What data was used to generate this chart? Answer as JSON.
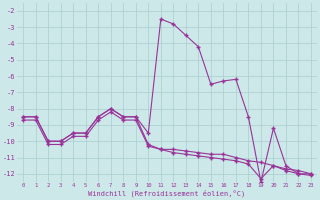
{
  "xlabel": "Windchill (Refroidissement éolien,°C)",
  "x": [
    0,
    1,
    2,
    3,
    4,
    5,
    6,
    7,
    8,
    9,
    10,
    11,
    12,
    13,
    14,
    15,
    16,
    17,
    18,
    19,
    20,
    21,
    22,
    23
  ],
  "line1": [
    -8.5,
    -8.5,
    -10.0,
    -10.0,
    -9.5,
    -9.5,
    -8.5,
    -8.0,
    -8.5,
    -8.5,
    -9.5,
    -2.5,
    -2.8,
    -3.5,
    -4.2,
    -6.5,
    -6.3,
    -6.2,
    -8.5,
    -12.5,
    -9.2,
    -11.5,
    -12.0,
    -12.0
  ],
  "line2": [
    -8.5,
    -8.5,
    -10.0,
    -10.0,
    -9.5,
    -9.5,
    -8.5,
    -8.0,
    -8.5,
    -8.5,
    -10.2,
    -10.5,
    -10.5,
    -10.6,
    -10.7,
    -10.8,
    -10.8,
    -11.0,
    -11.2,
    -11.3,
    -11.5,
    -11.7,
    -11.8,
    -12.0
  ],
  "line3": [
    -8.7,
    -8.7,
    -10.2,
    -10.2,
    -9.7,
    -9.7,
    -8.7,
    -8.2,
    -8.7,
    -8.7,
    -10.3,
    -10.5,
    -10.7,
    -10.8,
    -10.9,
    -11.0,
    -11.1,
    -11.2,
    -11.4,
    -12.3,
    -11.5,
    -11.8,
    -12.0,
    -12.1
  ],
  "ylim": [
    -12.5,
    -1.5
  ],
  "xlim": [
    -0.5,
    23.5
  ],
  "yticks": [
    -12,
    -11,
    -10,
    -9,
    -8,
    -7,
    -6,
    -5,
    -4,
    -3,
    -2
  ],
  "xticks": [
    0,
    1,
    2,
    3,
    4,
    5,
    6,
    7,
    8,
    9,
    10,
    11,
    12,
    13,
    14,
    15,
    16,
    17,
    18,
    19,
    20,
    21,
    22,
    23
  ],
  "line_color": "#993399",
  "bg_color": "#cce8e8",
  "grid_color": "#aacece",
  "marker": "+"
}
